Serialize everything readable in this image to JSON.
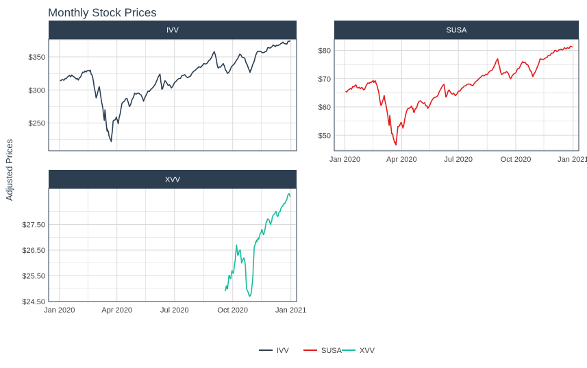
{
  "title": "Monthly Stock Prices",
  "ylabel": "Adjusted Prices",
  "colors": {
    "IVV": "#2c3e50",
    "SUSA": "#e31a1c",
    "XVV": "#18bc9c"
  },
  "legend": [
    {
      "name": "IVV",
      "label": "IVV"
    },
    {
      "name": "SUSA",
      "label": "SUSA"
    },
    {
      "name": "XVV",
      "label": "XVV"
    }
  ],
  "chart_data": [
    {
      "type": "line",
      "symbol": "IVV",
      "panel_label": "IVV",
      "x_domain": [
        "2019-12-15",
        "2021-01-10"
      ],
      "ylim": [
        208,
        377
      ],
      "y_ticks": [
        {
          "value": 250,
          "label": "$250"
        },
        {
          "value": 300,
          "label": "$300"
        },
        {
          "value": 350,
          "label": "$350"
        }
      ],
      "x_ticks": [],
      "points": [
        [
          "2020-01-02",
          314
        ],
        [
          "2020-01-10",
          317
        ],
        [
          "2020-01-17",
          322
        ],
        [
          "2020-01-24",
          320
        ],
        [
          "2020-01-31",
          315
        ],
        [
          "2020-02-07",
          327
        ],
        [
          "2020-02-14",
          329
        ],
        [
          "2020-02-19",
          330
        ],
        [
          "2020-02-24",
          312
        ],
        [
          "2020-02-28",
          288
        ],
        [
          "2020-03-04",
          305
        ],
        [
          "2020-03-09",
          276
        ],
        [
          "2020-03-12",
          254
        ],
        [
          "2020-03-13",
          270
        ],
        [
          "2020-03-16",
          240
        ],
        [
          "2020-03-18",
          238
        ],
        [
          "2020-03-20",
          229
        ],
        [
          "2020-03-23",
          222
        ],
        [
          "2020-03-26",
          253
        ],
        [
          "2020-03-31",
          259
        ],
        [
          "2020-04-03",
          249
        ],
        [
          "2020-04-09",
          280
        ],
        [
          "2020-04-17",
          287
        ],
        [
          "2020-04-21",
          275
        ],
        [
          "2020-04-29",
          295
        ],
        [
          "2020-05-08",
          293
        ],
        [
          "2020-05-13",
          283
        ],
        [
          "2020-05-20",
          298
        ],
        [
          "2020-05-29",
          305
        ],
        [
          "2020-06-08",
          324
        ],
        [
          "2020-06-11",
          301
        ],
        [
          "2020-06-16",
          314
        ],
        [
          "2020-06-26",
          303
        ],
        [
          "2020-07-06",
          316
        ],
        [
          "2020-07-15",
          322
        ],
        [
          "2020-07-24",
          320
        ],
        [
          "2020-08-03",
          330
        ],
        [
          "2020-08-14",
          337
        ],
        [
          "2020-08-24",
          344
        ],
        [
          "2020-09-02",
          358
        ],
        [
          "2020-09-08",
          333
        ],
        [
          "2020-09-16",
          340
        ],
        [
          "2020-09-23",
          325
        ],
        [
          "2020-10-01",
          337
        ],
        [
          "2020-10-12",
          354
        ],
        [
          "2020-10-20",
          348
        ],
        [
          "2020-10-28",
          328
        ],
        [
          "2020-10-30",
          330
        ],
        [
          "2020-11-09",
          358
        ],
        [
          "2020-11-20",
          357
        ],
        [
          "2020-11-27",
          364
        ],
        [
          "2020-12-04",
          368
        ],
        [
          "2020-12-11",
          367
        ],
        [
          "2020-12-18",
          371
        ],
        [
          "2020-12-24",
          370
        ],
        [
          "2020-12-31",
          374
        ]
      ]
    },
    {
      "type": "line",
      "symbol": "SUSA",
      "panel_label": "SUSA",
      "x_domain": [
        "2019-12-15",
        "2021-01-10"
      ],
      "ylim": [
        44.5,
        84
      ],
      "y_ticks": [
        {
          "value": 50,
          "label": "$50"
        },
        {
          "value": 60,
          "label": "$60"
        },
        {
          "value": 70,
          "label": "$70"
        },
        {
          "value": 80,
          "label": "$80"
        }
      ],
      "x_ticks": [
        {
          "date": "2020-01-01",
          "label": "Jan 2020"
        },
        {
          "date": "2020-04-01",
          "label": "Apr 2020"
        },
        {
          "date": "2020-07-01",
          "label": "Jul 2020"
        },
        {
          "date": "2020-10-01",
          "label": "Oct 2020"
        },
        {
          "date": "2021-01-01",
          "label": "Jan 2021"
        }
      ],
      "points": [
        [
          "2020-01-02",
          65.5
        ],
        [
          "2020-01-10",
          66.5
        ],
        [
          "2020-01-17",
          67.5
        ],
        [
          "2020-01-24",
          67
        ],
        [
          "2020-01-31",
          66
        ],
        [
          "2020-02-07",
          68.5
        ],
        [
          "2020-02-14",
          69
        ],
        [
          "2020-02-19",
          69.2
        ],
        [
          "2020-02-24",
          65.5
        ],
        [
          "2020-02-28",
          60.5
        ],
        [
          "2020-03-04",
          64
        ],
        [
          "2020-03-09",
          58
        ],
        [
          "2020-03-12",
          53.5
        ],
        [
          "2020-03-13",
          57
        ],
        [
          "2020-03-16",
          50.5
        ],
        [
          "2020-03-18",
          50
        ],
        [
          "2020-03-20",
          48
        ],
        [
          "2020-03-23",
          46.5
        ],
        [
          "2020-03-26",
          53
        ],
        [
          "2020-03-31",
          54.5
        ],
        [
          "2020-04-03",
          52.5
        ],
        [
          "2020-04-09",
          58.5
        ],
        [
          "2020-04-17",
          60.3
        ],
        [
          "2020-04-21",
          58
        ],
        [
          "2020-04-29",
          62
        ],
        [
          "2020-05-08",
          61.5
        ],
        [
          "2020-05-13",
          59.5
        ],
        [
          "2020-05-20",
          62.5
        ],
        [
          "2020-05-29",
          64
        ],
        [
          "2020-06-08",
          68
        ],
        [
          "2020-06-11",
          63.5
        ],
        [
          "2020-06-16",
          66
        ],
        [
          "2020-06-26",
          64
        ],
        [
          "2020-07-06",
          66.5
        ],
        [
          "2020-07-15",
          68
        ],
        [
          "2020-07-24",
          67.5
        ],
        [
          "2020-08-03",
          70
        ],
        [
          "2020-08-14",
          71.5
        ],
        [
          "2020-08-24",
          73
        ],
        [
          "2020-09-02",
          77
        ],
        [
          "2020-09-08",
          71.5
        ],
        [
          "2020-09-16",
          72.5
        ],
        [
          "2020-09-23",
          70
        ],
        [
          "2020-10-01",
          72
        ],
        [
          "2020-10-12",
          76
        ],
        [
          "2020-10-20",
          75
        ],
        [
          "2020-10-28",
          71
        ],
        [
          "2020-10-30",
          71.5
        ],
        [
          "2020-11-09",
          77
        ],
        [
          "2020-11-20",
          77.5
        ],
        [
          "2020-11-27",
          79
        ],
        [
          "2020-12-04",
          80
        ],
        [
          "2020-12-11",
          80.2
        ],
        [
          "2020-12-18",
          81
        ],
        [
          "2020-12-24",
          80.8
        ],
        [
          "2020-12-31",
          81.2
        ]
      ]
    },
    {
      "type": "line",
      "symbol": "XVV",
      "panel_label": "XVV",
      "x_domain": [
        "2019-12-15",
        "2021-01-10"
      ],
      "ylim": [
        24.5,
        28.9
      ],
      "y_ticks": [
        {
          "value": 24.5,
          "label": "$24.50"
        },
        {
          "value": 25.5,
          "label": "$25.50"
        },
        {
          "value": 26.5,
          "label": "$26.50"
        },
        {
          "value": 27.5,
          "label": "$27.50"
        }
      ],
      "x_ticks": [
        {
          "date": "2020-01-01",
          "label": "Jan 2020"
        },
        {
          "date": "2020-04-01",
          "label": "Apr 2020"
        },
        {
          "date": "2020-07-01",
          "label": "Jul 2020"
        },
        {
          "date": "2020-10-01",
          "label": "Oct 2020"
        },
        {
          "date": "2021-01-01",
          "label": "Jan 2021"
        }
      ],
      "points": [
        [
          "2020-09-19",
          24.9
        ],
        [
          "2020-09-21",
          25.1
        ],
        [
          "2020-09-23",
          25.0
        ],
        [
          "2020-09-25",
          25.5
        ],
        [
          "2020-09-28",
          25.4
        ],
        [
          "2020-09-30",
          25.7
        ],
        [
          "2020-10-02",
          25.6
        ],
        [
          "2020-10-05",
          26.1
        ],
        [
          "2020-10-07",
          26.7
        ],
        [
          "2020-10-09",
          26.3
        ],
        [
          "2020-10-13",
          26.5
        ],
        [
          "2020-10-15",
          26.0
        ],
        [
          "2020-10-19",
          26.2
        ],
        [
          "2020-10-21",
          25.9
        ],
        [
          "2020-10-23",
          25.0
        ],
        [
          "2020-10-26",
          24.8
        ],
        [
          "2020-10-28",
          24.7
        ],
        [
          "2020-10-30",
          24.8
        ],
        [
          "2020-11-02",
          25.5
        ],
        [
          "2020-11-04",
          26.6
        ],
        [
          "2020-11-06",
          26.8
        ],
        [
          "2020-11-09",
          26.9
        ],
        [
          "2020-11-12",
          27.0
        ],
        [
          "2020-11-16",
          27.3
        ],
        [
          "2020-11-19",
          27.1
        ],
        [
          "2020-11-23",
          27.6
        ],
        [
          "2020-11-26",
          27.7
        ],
        [
          "2020-11-30",
          27.5
        ],
        [
          "2020-12-03",
          27.8
        ],
        [
          "2020-12-08",
          28.0
        ],
        [
          "2020-12-11",
          27.8
        ],
        [
          "2020-12-15",
          28.0
        ],
        [
          "2020-12-18",
          28.2
        ],
        [
          "2020-12-22",
          28.3
        ],
        [
          "2020-12-29",
          28.7
        ],
        [
          "2020-12-31",
          28.6
        ]
      ]
    }
  ]
}
